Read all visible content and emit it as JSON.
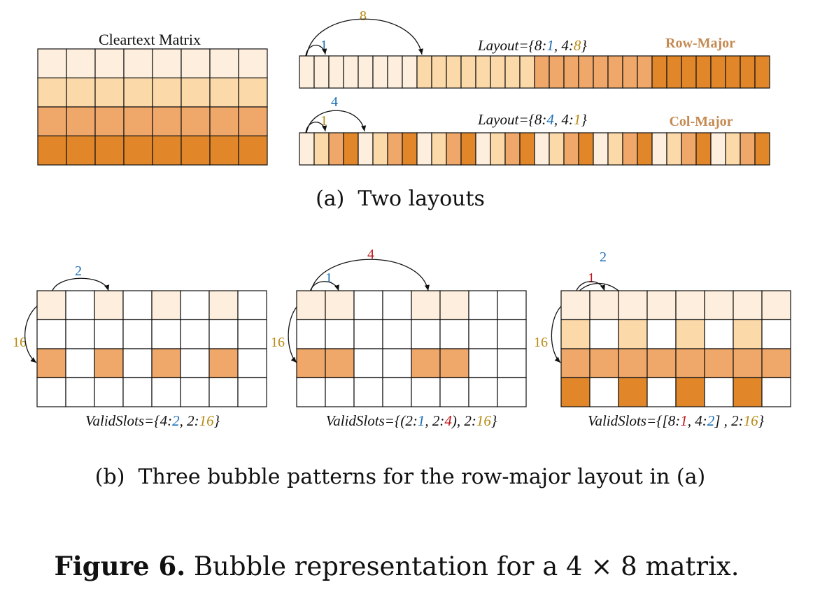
{
  "colors": {
    "row0": "#fdeedd",
    "row1": "#fcd9a8",
    "row2": "#f0a86a",
    "row3": "#e1872a",
    "empty": "#ffffff",
    "stroke": "#111111",
    "blue": "#1a6fb8",
    "gold": "#b88a12",
    "red": "#c0141b",
    "tag": "#c48a52"
  },
  "matrix": {
    "rows": 4,
    "cols": 8
  },
  "panel_a": {
    "matrix_title": "Cleartext Matrix",
    "row_major": {
      "order": [
        0,
        0,
        0,
        0,
        0,
        0,
        0,
        0,
        1,
        1,
        1,
        1,
        1,
        1,
        1,
        1,
        2,
        2,
        2,
        2,
        2,
        2,
        2,
        2,
        3,
        3,
        3,
        3,
        3,
        3,
        3,
        3
      ],
      "tag": "Row-Major",
      "layout_prefix": "Layout={8:",
      "layout_v1": "1",
      "layout_mid": ", 4:",
      "layout_v2": "8",
      "layout_suffix": "}",
      "arc_small": "1",
      "arc_large": "8"
    },
    "col_major": {
      "order": [
        0,
        1,
        2,
        3,
        0,
        1,
        2,
        3,
        0,
        1,
        2,
        3,
        0,
        1,
        2,
        3,
        0,
        1,
        2,
        3,
        0,
        1,
        2,
        3,
        0,
        1,
        2,
        3,
        0,
        1,
        2,
        3
      ],
      "tag": "Col-Major",
      "layout_prefix": "Layout={8:",
      "layout_v1": "4",
      "layout_mid": ", 4:",
      "layout_v2": "1",
      "layout_suffix": "}",
      "arc_small": "1",
      "arc_large": "4"
    },
    "caption": "(a)  Two layouts"
  },
  "panel_b": {
    "patterns": [
      {
        "grid": [
          [
            0,
            -1,
            0,
            -1,
            0,
            -1,
            0,
            -1
          ],
          [
            -1,
            -1,
            -1,
            -1,
            -1,
            -1,
            -1,
            -1
          ],
          [
            2,
            -1,
            2,
            -1,
            2,
            -1,
            2,
            -1
          ],
          [
            -1,
            -1,
            -1,
            -1,
            -1,
            -1,
            -1,
            -1
          ]
        ],
        "top_label": "2",
        "side_label": "16",
        "slots": [
          {
            "t": "ValidSlots={4:",
            "c": "text"
          },
          {
            "t": "2",
            "c": "blue"
          },
          {
            "t": ", 2:",
            "c": "text"
          },
          {
            "t": "16",
            "c": "gold"
          },
          {
            "t": "}",
            "c": "text"
          }
        ]
      },
      {
        "grid": [
          [
            0,
            0,
            -1,
            -1,
            0,
            0,
            -1,
            -1
          ],
          [
            -1,
            -1,
            -1,
            -1,
            -1,
            -1,
            -1,
            -1
          ],
          [
            2,
            2,
            -1,
            -1,
            2,
            2,
            -1,
            -1
          ],
          [
            -1,
            -1,
            -1,
            -1,
            -1,
            -1,
            -1,
            -1
          ]
        ],
        "top_label": "4",
        "inner_label": "1",
        "side_label": "16",
        "slots": [
          {
            "t": "ValidSlots={(2:",
            "c": "text"
          },
          {
            "t": "1",
            "c": "blue"
          },
          {
            "t": ", 2:",
            "c": "text"
          },
          {
            "t": "4",
            "c": "red"
          },
          {
            "t": "), 2:",
            "c": "text"
          },
          {
            "t": "16",
            "c": "gold"
          },
          {
            "t": "}",
            "c": "text"
          }
        ]
      },
      {
        "grid": [
          [
            0,
            0,
            0,
            0,
            0,
            0,
            0,
            0
          ],
          [
            1,
            -1,
            1,
            -1,
            1,
            -1,
            1,
            -1
          ],
          [
            2,
            2,
            2,
            2,
            2,
            2,
            2,
            2
          ],
          [
            3,
            -1,
            3,
            -1,
            3,
            -1,
            3,
            -1
          ]
        ],
        "top_label": "2",
        "inner_label": "1",
        "side_label": "16",
        "slots": [
          {
            "t": "ValidSlots={[8:",
            "c": "text"
          },
          {
            "t": "1",
            "c": "red"
          },
          {
            "t": ", 4:",
            "c": "text"
          },
          {
            "t": "2",
            "c": "blue"
          },
          {
            "t": "] , 2:",
            "c": "text"
          },
          {
            "t": "16",
            "c": "gold"
          },
          {
            "t": "}",
            "c": "text"
          }
        ]
      }
    ],
    "caption": "(b)  Three bubble patterns for the row-major layout in (a)"
  },
  "figure_caption": {
    "label": "Figure 6.",
    "text": " Bubble representation for a 4 × 8 matrix."
  }
}
